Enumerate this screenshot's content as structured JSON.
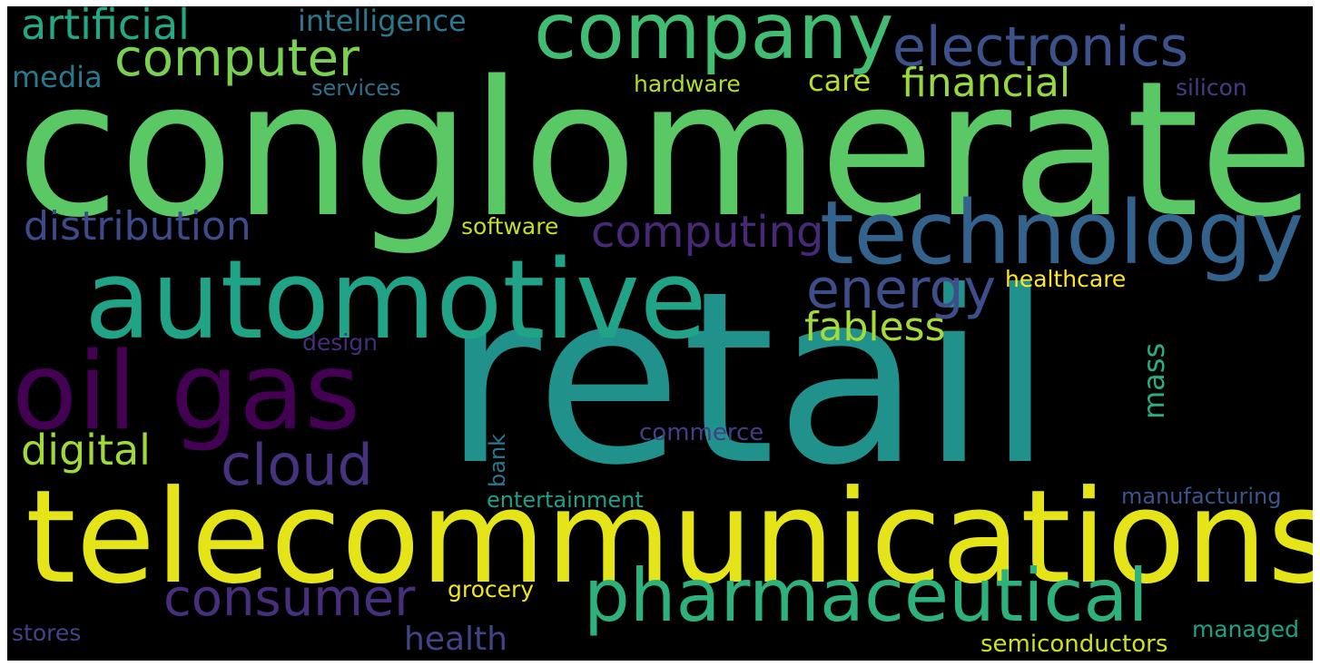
{
  "words": {
    "conglomerate": {
      "text": "conglomerate",
      "color": "#5ac864"
    },
    "retail": {
      "text": "retail",
      "color": "#21918c"
    },
    "telecommunications": {
      "text": "telecommunications",
      "color": "#e4e419"
    },
    "automotive": {
      "text": "automotive",
      "color": "#20a386"
    },
    "company": {
      "text": "company",
      "color": "#40bd72"
    },
    "technology": {
      "text": "technology",
      "color": "#33638d"
    },
    "oil_gas": {
      "text": "oil gas",
      "color": "#440154"
    },
    "pharmaceutical": {
      "text": "pharmaceutical",
      "color": "#2db27d"
    },
    "electronics": {
      "text": "electronics",
      "color": "#3b528b"
    },
    "computer": {
      "text": "computer",
      "color": "#7ad151"
    },
    "artificial": {
      "text": "artificial",
      "color": "#22a884"
    },
    "intelligence": {
      "text": "intelligence",
      "color": "#2a788e"
    },
    "distribution": {
      "text": "distribution",
      "color": "#3e4a89"
    },
    "computing": {
      "text": "computing",
      "color": "#482878"
    },
    "energy": {
      "text": "energy",
      "color": "#3d4e8a"
    },
    "fabless": {
      "text": "fabless",
      "color": "#a5db36"
    },
    "financial": {
      "text": "financial",
      "color": "#95d840"
    },
    "care": {
      "text": "care",
      "color": "#b5de2b"
    },
    "media": {
      "text": "media",
      "color": "#29798e"
    },
    "services": {
      "text": "services",
      "color": "#2c718e"
    },
    "hardware": {
      "text": "hardware",
      "color": "#b2dd2c"
    },
    "silicon": {
      "text": "silicon",
      "color": "#433e85"
    },
    "software": {
      "text": "software",
      "color": "#c2df23"
    },
    "healthcare": {
      "text": "healthcare",
      "color": "#fde725"
    },
    "design": {
      "text": "design",
      "color": "#472d7b"
    },
    "mass": {
      "text": "mass",
      "color": "#28ae80"
    },
    "digital": {
      "text": "digital",
      "color": "#a0da39"
    },
    "cloud": {
      "text": "cloud",
      "color": "#46327e"
    },
    "commerce": {
      "text": "commerce",
      "color": "#433e85"
    },
    "bank": {
      "text": "bank",
      "color": "#2a788e"
    },
    "entertainment": {
      "text": "entertainment",
      "color": "#1f9e89"
    },
    "manufacturing": {
      "text": "manufacturing",
      "color": "#39568c"
    },
    "consumer": {
      "text": "consumer",
      "color": "#472f7d"
    },
    "grocery": {
      "text": "grocery",
      "color": "#f1e51d"
    },
    "health": {
      "text": "health",
      "color": "#414487"
    },
    "stores": {
      "text": "stores",
      "color": "#414487"
    },
    "semiconductors": {
      "text": "semiconductors",
      "color": "#d0e11c"
    },
    "managed": {
      "text": "managed",
      "color": "#1fa088"
    }
  }
}
